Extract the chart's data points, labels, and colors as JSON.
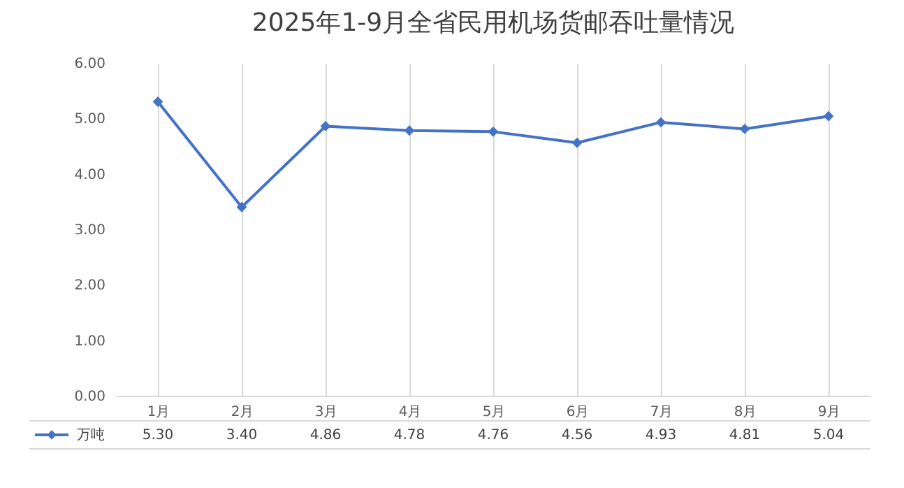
{
  "chart_data": {
    "type": "line",
    "title": "2025年1-9月全省民用机场货邮吞吐量情况",
    "categories": [
      "1月",
      "2月",
      "3月",
      "4月",
      "5月",
      "6月",
      "7月",
      "8月",
      "9月"
    ],
    "series": [
      {
        "name": "万吨",
        "color": "#4472c4",
        "values": [
          5.3,
          3.4,
          4.86,
          4.78,
          4.76,
          4.56,
          4.93,
          4.81,
          5.04
        ],
        "value_labels": [
          "5.30",
          "3.40",
          "4.86",
          "4.78",
          "4.76",
          "4.56",
          "4.93",
          "4.81",
          "5.04"
        ]
      }
    ],
    "ylim": [
      0,
      6
    ],
    "yticks": [
      {
        "value": 0,
        "label": "0.00"
      },
      {
        "value": 1,
        "label": "1.00"
      },
      {
        "value": 2,
        "label": "2.00"
      },
      {
        "value": 3,
        "label": "3.00"
      },
      {
        "value": 4,
        "label": "4.00"
      },
      {
        "value": 5,
        "label": "5.00"
      },
      {
        "value": 6,
        "label": "6.00"
      }
    ],
    "grid": "x",
    "marker": "diamond",
    "line_style": "solid",
    "legend": "bottom left"
  }
}
